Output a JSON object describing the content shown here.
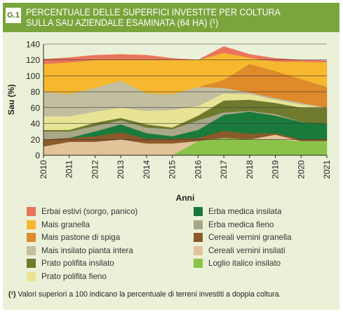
{
  "figure": {
    "badge": "G.1",
    "title_line1": "PERCENTUALE DELLE SUPERFICI INVESTITE PER COLTURA",
    "title_line2": "SULLA SAU AZIENDALE ESAMINATA (64 HA) (¹)",
    "footnote_marker": "(¹)",
    "footnote_text": " Valori superiori a 100 indicano la percentuale di terreni investiti a doppia coltura."
  },
  "chart_data": {
    "type": "area",
    "stacked": true,
    "xlabel": "Anni",
    "ylabel": "Sau (%)",
    "ylim": [
      0,
      140
    ],
    "yticks": [
      0,
      20,
      40,
      60,
      80,
      100,
      120,
      140
    ],
    "grid": "horizontal",
    "legend_position": "bottom",
    "x": [
      "2010",
      "2011",
      "2012",
      "2013",
      "2014",
      "2015",
      "2016",
      "2017",
      "2018",
      "2019",
      "2020",
      "2021"
    ],
    "series": [
      {
        "name": "Loglio italico insilato",
        "color": "#8bc34a",
        "values": [
          0,
          0,
          0,
          0,
          0,
          0,
          18,
          22,
          20,
          20,
          18,
          18
        ]
      },
      {
        "name": "Cereali vernini insilati",
        "color": "#e3c39a",
        "values": [
          11,
          17,
          17,
          20,
          15,
          15,
          0,
          0,
          0,
          6,
          0,
          0
        ]
      },
      {
        "name": "Cereali vernini granella",
        "color": "#8b5a2b",
        "values": [
          9,
          5,
          7,
          9,
          6,
          6,
          4,
          9,
          7,
          2,
          2,
          2
        ]
      },
      {
        "name": "Erba medica insilata",
        "color": "#1a7a3c",
        "values": [
          0,
          0,
          6,
          10,
          7,
          3,
          10,
          20,
          28,
          22,
          22,
          20
        ]
      },
      {
        "name": "Erba medica fieno",
        "color": "#a8a787",
        "values": [
          10,
          8,
          7,
          5,
          7,
          9,
          12,
          3,
          1,
          2,
          0,
          0
        ]
      },
      {
        "name": "Prato polifita insilato",
        "color": "#6f7a2e",
        "values": [
          2,
          2,
          4,
          3,
          4,
          2,
          6,
          15,
          14,
          14,
          18,
          20
        ]
      },
      {
        "name": "Prato polifita fieno",
        "color": "#e8e495",
        "values": [
          17,
          17,
          14,
          13,
          17,
          22,
          12,
          9,
          7,
          4,
          4,
          0
        ]
      },
      {
        "name": "Mais insilato pianta intera",
        "color": "#c2bfa0",
        "values": [
          31,
          28,
          30,
          34,
          22,
          20,
          24,
          7,
          2,
          2,
          2,
          0
        ]
      },
      {
        "name": "Mais pastone di spiga",
        "color": "#df8a2b",
        "values": [
          0,
          0,
          0,
          0,
          0,
          0,
          0,
          10,
          36,
          34,
          30,
          26
        ]
      },
      {
        "name": "Mais granella",
        "color": "#f5b82e",
        "values": [
          35,
          40,
          35,
          26,
          42,
          43,
          34,
          34,
          8,
          12,
          22,
          31
        ]
      },
      {
        "name": "Erbai estivi (sorgo, panico)",
        "color": "#e9755a",
        "values": [
          6,
          6,
          6,
          7,
          6,
          2,
          0,
          8,
          4,
          4,
          2,
          2
        ]
      }
    ]
  },
  "legend": {
    "left": [
      "Erbai estivi (sorgo, panico)",
      "Mais granella",
      "Mais pastone di spiga",
      "Mais insilato pianta intera",
      "Prato polifita insilato",
      "Prato polifita fieno"
    ],
    "right": [
      "Erba medica insilata",
      "Erba medica fieno",
      "Cereali vernini granella",
      "Cereali vernini insilati",
      "Loglio italico insilato"
    ]
  }
}
